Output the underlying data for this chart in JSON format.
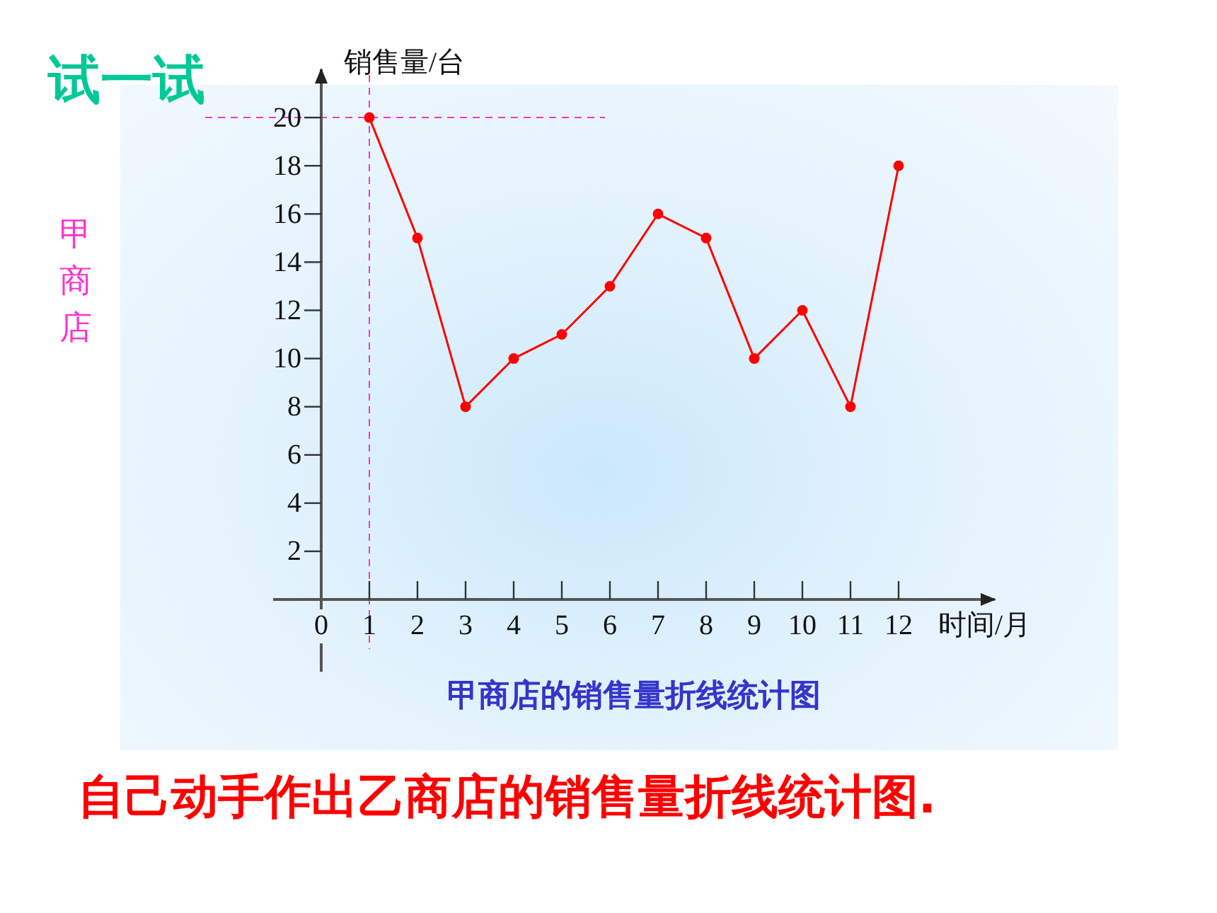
{
  "chart_data": {
    "type": "line",
    "title": "甲商店的销售量折线统计图",
    "xlabel": "时间/月",
    "ylabel": "销售量/台",
    "x": [
      1,
      2,
      3,
      4,
      5,
      6,
      7,
      8,
      9,
      10,
      11,
      12
    ],
    "values": [
      20,
      15,
      8,
      10,
      11,
      13,
      16,
      15,
      10,
      12,
      8,
      18
    ],
    "color": "#ff0000",
    "marker": "circle",
    "xlim": [
      -1,
      14
    ],
    "ylim": [
      -3,
      22
    ],
    "xticks": [
      0,
      1,
      2,
      3,
      4,
      5,
      6,
      7,
      8,
      9,
      10,
      11,
      12
    ],
    "yticks": [
      2,
      4,
      6,
      8,
      10,
      12,
      14,
      16,
      18,
      20
    ],
    "ref_lines": [
      {
        "axis": "x",
        "value": 1,
        "color": "#ff33cc",
        "line_style": "dashed"
      },
      {
        "axis": "y",
        "value": 20,
        "color": "#ff33cc",
        "line_style": "dashed"
      }
    ],
    "annotations": [
      "试一试",
      "甲商店",
      "自己动手作出乙商店的销售量折线统计图."
    ]
  }
}
